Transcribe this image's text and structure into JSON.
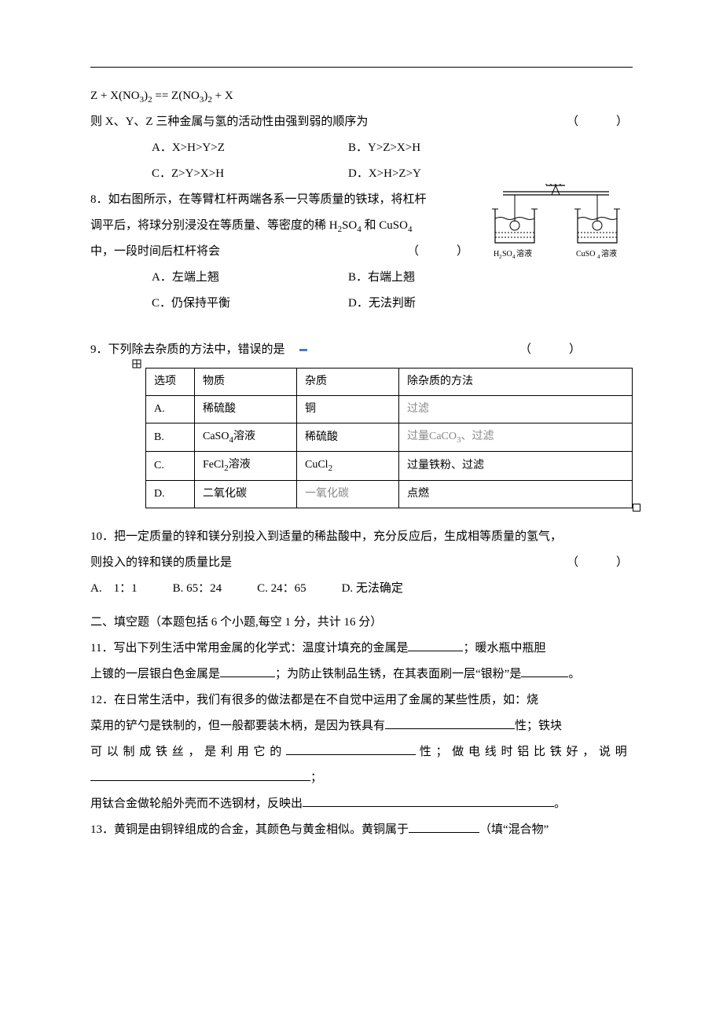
{
  "eq_line": "Z + X(NO₃)₂ == Z(NO₃)₂ + X",
  "paren": "（　　）",
  "q7_stem": "则 X、Y、Z 三种金属与氢的活动性由强到弱的顺序为",
  "q7_opts": {
    "A": "A．X>H>Y>Z",
    "B": "B．Y>Z>X>H",
    "C": "C．Z>Y>X>H",
    "D": "D．X>H>Z>Y"
  },
  "q8_l1": "8．如右图所示，在等臂杠杆两端各系一只等质量的铁球，将杠杆",
  "q8_l2_pre": "调平后，将球分别浸没在等质量、等密度的稀 H",
  "q8_l2_mid": "SO",
  "q8_l2_post": " 和 CuSO",
  "q8_l3": "中，一段时间后杠杆将会",
  "q8_opts": {
    "A": "A．左端上翘",
    "B": "B．右端上翘",
    "C": "C．仍保持平衡",
    "D": "D．无法判断"
  },
  "beaker_left_pre": "H",
  "beaker_left_so": "SO",
  "beaker_suffix": " 溶液",
  "beaker_right_pre": "CuSO",
  "beaker_colors": {
    "stroke": "#000000",
    "fill": "#ffffff",
    "liquid_line": "#000000"
  },
  "q9_stem": "9．下列除去杂质的方法中，错误的是",
  "table": {
    "headers": [
      "选项",
      "物质",
      "杂质",
      "除杂质的方法"
    ],
    "rows": [
      {
        "opt": "A.",
        "sub_html": "稀硫酸",
        "sub_bold": true,
        "imp_html": "铜",
        "imp_bold": true,
        "method_html": "过滤",
        "method_gray": true
      },
      {
        "opt": "B.",
        "sub_html": "CaSO₄溶液",
        "sub_bold": false,
        "imp_html": "稀硫酸",
        "imp_bold": true,
        "method_html": "过量CaCO₃、过滤",
        "method_gray": true
      },
      {
        "opt": "C.",
        "sub_html": "FeCl₂溶液",
        "sub_bold": false,
        "imp_html": "CuCl₂",
        "imp_bold": false,
        "method_html": "过量铁粉、过滤",
        "method_gray": false
      },
      {
        "opt": "D.",
        "sub_html": "二氧化碳",
        "sub_bold": true,
        "imp_html": "一氧化碳",
        "imp_bold": false,
        "method_html": "点燃",
        "method_gray": false
      }
    ],
    "col_widths": [
      "62px",
      "130px",
      "130px",
      "auto"
    ]
  },
  "q10_l1": "10．把一定质量的锌和镁分别投入到适量的稀盐酸中，充分反应后，生成相等质量的氢气，",
  "q10_l2": "则投入的锌和镁的质量比是",
  "q10_opts": "A.　1：1　　　B. 65：24　　　C. 24：65　　　D. 无法确定",
  "sec2": "二、填空题（本题包括 6 个小题,每空 1 分，共计 16 分）",
  "q11_a": "11．写出下列生活中常用金属的化学式：温度计填充的金属是",
  "q11_b": "；暖水瓶中瓶胆",
  "q11_c": "上镀的一层银白色金属是",
  "q11_d": "；为防止铁制品生锈，在其表面刷一层“银粉”是",
  "q12_a": "12．在日常生活中，我们有很多的做法都是在不自觉中运用了金属的某些性质，如：烧",
  "q12_b": "菜用的铲勺是铁制的，但一般都要装木柄，是因为铁具有",
  "q12_c": "性；铁块",
  "q12_d_pre": "可 以 制 成 铁 丝 ， 是 利 用 它 的",
  "q12_d_post": "性 ； 做 电 线 时 铝 比 铁 好 ， 说 明",
  "q12_e": "；",
  "q12_f": "用钛合金做轮船外壳而不选钢材，反映出",
  "q13_a": "13．黄铜是由铜锌组成的合金，其颜色与黄金相似。黄铜属于",
  "q13_b": "（填“混合物”",
  "period": "。",
  "semicolon": "；"
}
